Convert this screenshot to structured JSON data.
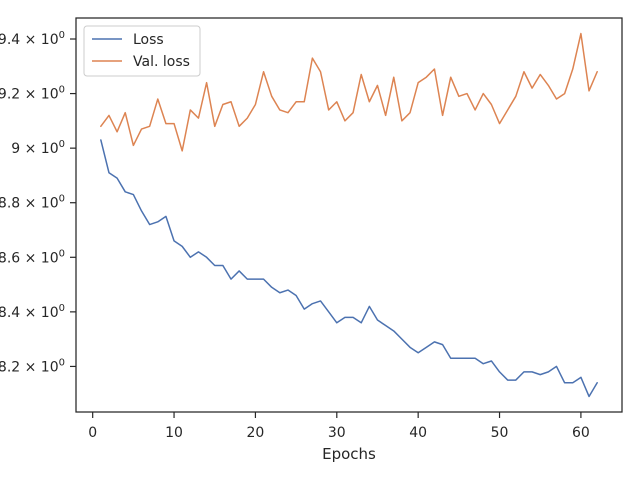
{
  "chart_data": {
    "type": "line",
    "xlabel": "Epochs",
    "ylabel": "",
    "xlim": [
      -2.05,
      65.05
    ],
    "ylim": [
      8.033,
      9.477
    ],
    "x_ticks": [
      0,
      10,
      20,
      30,
      40,
      50,
      60
    ],
    "y_ticks": [
      {
        "value": 8.2,
        "mantissa": "8.2",
        "label": "8.2 × 10^0"
      },
      {
        "value": 8.4,
        "mantissa": "8.4",
        "label": "8.4 × 10^0"
      },
      {
        "value": 8.6,
        "mantissa": "8.6",
        "label": "8.6 × 10^0"
      },
      {
        "value": 8.8,
        "mantissa": "8.8",
        "label": "8.8 × 10^0"
      },
      {
        "value": 9.0,
        "mantissa": "9",
        "label": "9 × 10^0"
      },
      {
        "value": 9.2,
        "mantissa": "9.2",
        "label": "9.2 × 10^0"
      },
      {
        "value": 9.4,
        "mantissa": "9.4",
        "label": "9.4 × 10^0"
      }
    ],
    "legend_position": "top-left",
    "grid": false,
    "x": [
      1,
      2,
      3,
      4,
      5,
      6,
      7,
      8,
      9,
      10,
      11,
      12,
      13,
      14,
      15,
      16,
      17,
      18,
      19,
      20,
      21,
      22,
      23,
      24,
      25,
      26,
      27,
      28,
      29,
      30,
      31,
      32,
      33,
      34,
      35,
      36,
      37,
      38,
      39,
      40,
      41,
      42,
      43,
      44,
      45,
      46,
      47,
      48,
      49,
      50,
      51,
      52,
      53,
      54,
      55,
      56,
      57,
      58,
      59,
      60,
      61,
      62
    ],
    "series": [
      {
        "name": "Loss",
        "color": "#4c72b0",
        "values": [
          9.03,
          8.91,
          8.89,
          8.84,
          8.83,
          8.77,
          8.72,
          8.73,
          8.75,
          8.66,
          8.64,
          8.6,
          8.62,
          8.6,
          8.57,
          8.57,
          8.52,
          8.55,
          8.52,
          8.52,
          8.52,
          8.49,
          8.47,
          8.48,
          8.46,
          8.41,
          8.43,
          8.44,
          8.4,
          8.36,
          8.38,
          8.38,
          8.36,
          8.42,
          8.37,
          8.35,
          8.33,
          8.3,
          8.27,
          8.25,
          8.27,
          8.29,
          8.28,
          8.23,
          8.23,
          8.23,
          8.23,
          8.21,
          8.22,
          8.18,
          8.15,
          8.15,
          8.18,
          8.18,
          8.17,
          8.18,
          8.2,
          8.14,
          8.14,
          8.16,
          8.09,
          8.14
        ]
      },
      {
        "name": "Val. loss",
        "color": "#dd8452",
        "values": [
          9.08,
          9.12,
          9.06,
          9.13,
          9.01,
          9.07,
          9.08,
          9.18,
          9.09,
          9.09,
          8.99,
          9.14,
          9.11,
          9.24,
          9.08,
          9.16,
          9.17,
          9.08,
          9.11,
          9.16,
          9.28,
          9.19,
          9.14,
          9.13,
          9.17,
          9.17,
          9.33,
          9.28,
          9.14,
          9.17,
          9.1,
          9.13,
          9.27,
          9.17,
          9.23,
          9.12,
          9.26,
          9.1,
          9.13,
          9.24,
          9.26,
          9.29,
          9.12,
          9.26,
          9.19,
          9.2,
          9.14,
          9.2,
          9.16,
          9.09,
          9.14,
          9.19,
          9.28,
          9.22,
          9.27,
          9.23,
          9.18,
          9.2,
          9.29,
          9.42,
          9.21,
          9.28
        ]
      }
    ]
  }
}
